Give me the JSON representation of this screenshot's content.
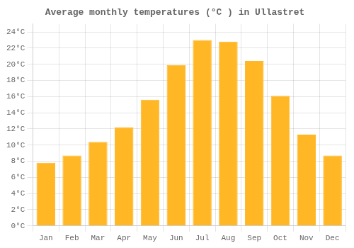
{
  "chart_data": {
    "type": "bar",
    "title": "Average monthly temperatures (°C ) in Ullastret",
    "categories": [
      "Jan",
      "Feb",
      "Mar",
      "Apr",
      "May",
      "Jun",
      "Jul",
      "Aug",
      "Sep",
      "Oct",
      "Nov",
      "Dec"
    ],
    "values": [
      7.8,
      8.7,
      10.4,
      12.2,
      15.6,
      19.9,
      23.0,
      22.8,
      20.4,
      16.1,
      11.3,
      8.7
    ],
    "color": "#FFB726",
    "ylim": [
      0,
      25
    ],
    "yticks": [
      {
        "value": 0,
        "label": "0°C"
      },
      {
        "value": 2,
        "label": "2°C"
      },
      {
        "value": 4,
        "label": "4°C"
      },
      {
        "value": 6,
        "label": "6°C"
      },
      {
        "value": 8,
        "label": "8°C"
      },
      {
        "value": 10,
        "label": "10°C"
      },
      {
        "value": 12,
        "label": "12°C"
      },
      {
        "value": 14,
        "label": "14°C"
      },
      {
        "value": 16,
        "label": "16°C"
      },
      {
        "value": 18,
        "label": "18°C"
      },
      {
        "value": 20,
        "label": "20°C"
      },
      {
        "value": 22,
        "label": "22°C"
      },
      {
        "value": 24,
        "label": "24°C"
      }
    ],
    "grid": true
  }
}
